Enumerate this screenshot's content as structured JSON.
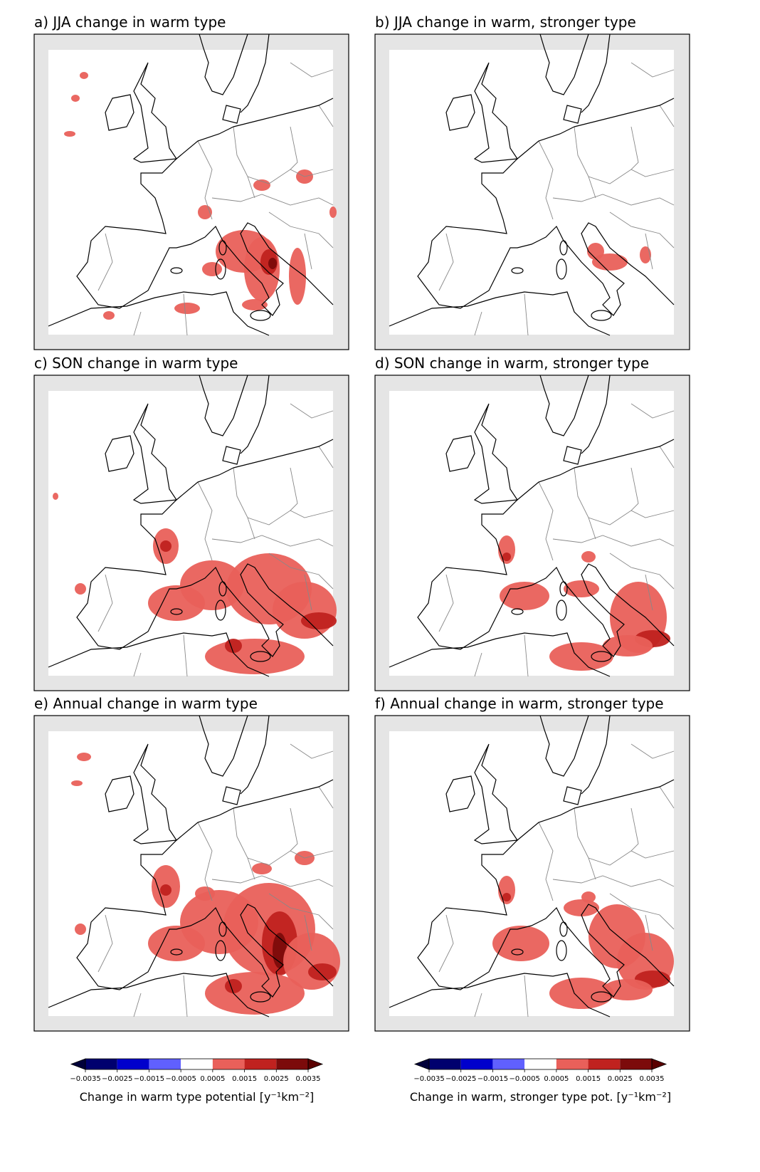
{
  "panels": [
    {
      "title": "a) JJA change in warm type"
    },
    {
      "title": "b) JJA change in warm, stronger type"
    },
    {
      "title": "c) SON change in warm type"
    },
    {
      "title": "d) SON change in warm, stronger type"
    },
    {
      "title": "e) Annual change in warm type"
    },
    {
      "title": "f) Annual change in warm, stronger type"
    }
  ],
  "colorbars": [
    {
      "label": "Change in warm type potential [y⁻¹km⁻²]",
      "ticks": [
        {
          "value": -0.0035,
          "label": "−0.0035"
        },
        {
          "value": -0.0025,
          "label": "−0.0025"
        },
        {
          "value": -0.0015,
          "label": "−0.0015"
        },
        {
          "value": -0.0005,
          "label": "−0.0005"
        },
        0.0005,
        0.0015,
        0.0025,
        0.0035
      ],
      "colors": [
        "#00006e",
        "#0000cc",
        "#6060ff",
        "#ffffff",
        "#e9605a",
        "#c0221f",
        "#7c0b0b"
      ],
      "extend_colors": [
        "#00003a",
        "#5a0000"
      ]
    },
    {
      "label": "Change in warm, stronger type pot. [y⁻¹km⁻²]",
      "ticks": [
        {
          "value": -0.0035,
          "label": "−0.0035"
        },
        {
          "value": -0.0025,
          "label": "−0.0025"
        },
        {
          "value": -0.0015,
          "label": "−0.0015"
        },
        {
          "value": -0.0005,
          "label": "−0.0005"
        },
        0.0005,
        0.0015,
        0.0025,
        0.0035
      ],
      "colors": [
        "#00006e",
        "#0000cc",
        "#6060ff",
        "#ffffff",
        "#e9605a",
        "#c0221f",
        "#7c0b0b"
      ],
      "extend_colors": [
        "#00003a",
        "#5a0000"
      ]
    }
  ]
}
